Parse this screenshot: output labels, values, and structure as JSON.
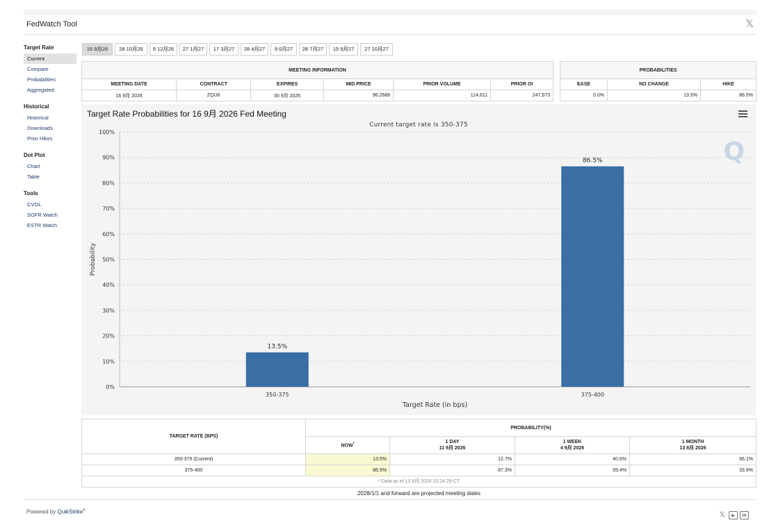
{
  "header": {
    "title": "FedWatch Tool",
    "close_icon": "x-logo-icon"
  },
  "sidebar": {
    "sections": [
      {
        "heading": "Target Rate",
        "items": [
          "Current",
          "Compare",
          "Probabilities",
          "Aggregated"
        ],
        "active": 0
      },
      {
        "heading": "Historical",
        "items": [
          "Historical",
          "Downloads",
          "Prior Hikes"
        ]
      },
      {
        "heading": "Dot Plot",
        "items": [
          "Chart",
          "Table"
        ]
      },
      {
        "heading": "Tools",
        "items": [
          "CVOL",
          "SOFR Watch",
          "ESTR Watch"
        ]
      }
    ]
  },
  "tabs": [
    "16 9月26",
    "28 10月26",
    "9 12月26",
    "27 1月27",
    "17 3月27",
    "28 4月27",
    "9 6月27",
    "28 7月27",
    "15 9月27",
    "27 10月27"
  ],
  "meeting_info": {
    "title": "MEETING INFORMATION",
    "headers": [
      "MEETING DATE",
      "CONTRACT",
      "EXPIRES",
      "MID PRICE",
      "PRIOR VOLUME",
      "PRIOR OI"
    ],
    "values": [
      "16 9月 2026",
      "ZQU6",
      "30 9月 2026",
      "96.2688",
      "114,611",
      "247,973"
    ]
  },
  "probabilities": {
    "title": "PROBABILITIES",
    "headers": [
      "EASE",
      "NO CHANGE",
      "HIKE"
    ],
    "values": [
      "0.0%",
      "13.5%",
      "86.5%"
    ]
  },
  "chart": {
    "title": "Target Rate Probabilities for 16 9月 2026 Fed Meeting",
    "subtitle": "Current target rate is 350-375",
    "menu_icon": "hamburger-menu-icon",
    "watermark": "Q"
  },
  "chart_data": {
    "type": "bar",
    "categories": [
      "350-375",
      "375-400"
    ],
    "values": [
      13.5,
      86.5
    ],
    "data_labels": [
      "13.5%",
      "86.5%"
    ],
    "xlabel": "Target Rate (in bps)",
    "ylabel": "Probability",
    "ylim": [
      0,
      100
    ],
    "yticks": [
      "0%",
      "10%",
      "20%",
      "30%",
      "40%",
      "50%",
      "60%",
      "70%",
      "80%",
      "90%",
      "100%"
    ],
    "grid": true,
    "bar_color": "#3a6ea5"
  },
  "rate_table": {
    "col_header": "TARGET RATE (BPS)",
    "prob_header": "PROBABILITY(%)",
    "sub_headers": [
      {
        "label": "NOW",
        "mark": "*",
        "date": ""
      },
      {
        "label": "1 DAY",
        "date": "11 9月 2026"
      },
      {
        "label": "1 WEEK",
        "date": "4 9月 2026"
      },
      {
        "label": "1 MONTH",
        "date": "13 8月 2026"
      }
    ],
    "rows": [
      {
        "rate": "350-375 (Current)",
        "values": [
          "13.5%",
          "12.7%",
          "40.6%",
          "66.1%"
        ]
      },
      {
        "rate": "375-400",
        "values": [
          "86.5%",
          "87.3%",
          "59.4%",
          "33.9%"
        ]
      }
    ],
    "note": "* Data as of 13 9月 2026 10:24:29 CT"
  },
  "projected_note": "2028/1/1 and forward are projected meeting dates",
  "footer": {
    "powered_prefix": "Powered by ",
    "brand": "QuikStrike",
    "reg": "®"
  },
  "social_icons": [
    "x-logo-icon",
    "youtube-icon",
    "linkedin-icon"
  ]
}
